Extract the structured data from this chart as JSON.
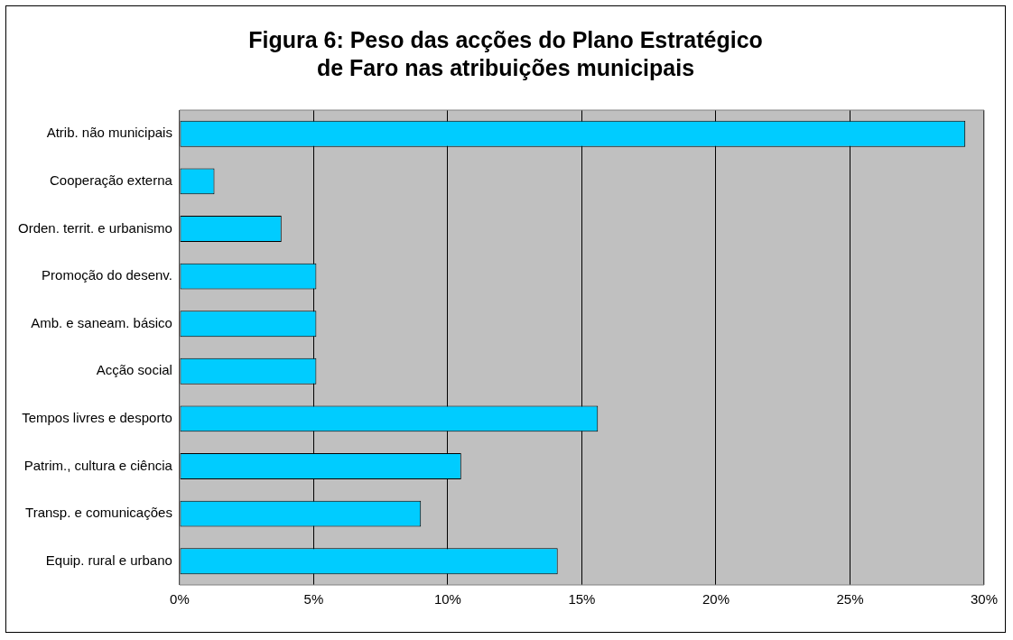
{
  "chart_data": {
    "type": "bar",
    "orientation": "horizontal",
    "title": "Figura 6: Peso das acções do Plano Estratégico\nde Faro nas atribuições municipais",
    "categories": [
      "Atrib. não municipais",
      "Cooperação externa",
      "Orden. territ. e urbanismo",
      "Promoção do desenv.",
      "Amb. e saneam. básico",
      "Acção social",
      "Tempos livres e desporto",
      "Patrim., cultura e ciência",
      "Transp. e comunicações",
      "Equip. rural e urbano"
    ],
    "values": [
      29.3,
      1.3,
      3.8,
      5.1,
      5.1,
      5.1,
      15.6,
      10.5,
      9.0,
      14.1
    ],
    "color": "#00ccff",
    "xlim": [
      0,
      30
    ],
    "xticks": [
      {
        "value": 0,
        "label": "0%"
      },
      {
        "value": 5,
        "label": "5%"
      },
      {
        "value": 10,
        "label": "10%"
      },
      {
        "value": 15,
        "label": "15%"
      },
      {
        "value": 20,
        "label": "20%"
      },
      {
        "value": 25,
        "label": "25%"
      },
      {
        "value": 30,
        "label": "30%"
      }
    ],
    "grid": "x",
    "legend": false
  }
}
